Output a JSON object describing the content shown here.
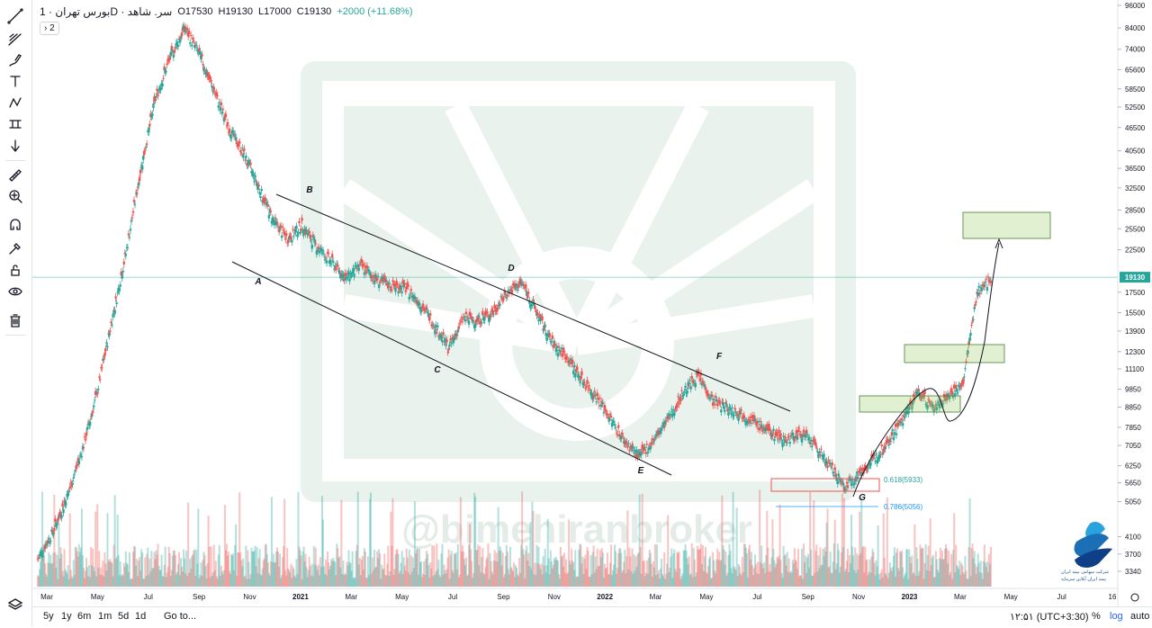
{
  "header": {
    "symbol": "بورس تهران · 1D · سر. شاهد",
    "open": "O17530",
    "high": "H19130",
    "low": "L17000",
    "close": "C19130",
    "change": "+2000 (+11.68%)",
    "badge": "› 2"
  },
  "toolbar": {
    "icons": [
      "trend-line-icon",
      "pitchfork-icon",
      "brush-icon",
      "text-icon",
      "pattern-icon",
      "measure-icon",
      "arrow-down-icon",
      "ruler-icon",
      "zoom-in-icon",
      "magnet-icon",
      "lock-drawing-icon",
      "unlock-icon",
      "eye-icon",
      "trash-icon",
      "layers-icon"
    ]
  },
  "bottom": {
    "ranges": [
      "5y",
      "1y",
      "6m",
      "1m",
      "5d",
      "1d"
    ],
    "goto": "Go to...",
    "time": "۱۲:۵۱ (UTC+3:30)",
    "percent": "%",
    "log": "log",
    "auto": "auto"
  },
  "watermark": "@bimehiranbroker",
  "logo_text": [
    "شرکت سهامی بیمه ایران",
    "بیمه ایران آنلاین سرمایه"
  ],
  "chart_data": {
    "type": "line",
    "title": "",
    "price_ticks": [
      "96000",
      "84000",
      "74000",
      "65600",
      "58500",
      "52500",
      "46500",
      "40500",
      "36500",
      "32500",
      "28500",
      "25500",
      "22500",
      "17500",
      "15500",
      "13900",
      "12300",
      "11100",
      "9850",
      "8850",
      "7850",
      "7050",
      "6250",
      "5650",
      "5050",
      "4100",
      "3700",
      "3340"
    ],
    "current_price": "19130",
    "time_ticks": [
      "Mar",
      "May",
      "Jul",
      "Sep",
      "Nov",
      "2021",
      "Mar",
      "May",
      "Jul",
      "Sep",
      "Nov",
      "2022",
      "Mar",
      "May",
      "Jul",
      "Sep",
      "Nov",
      "2023",
      "Mar",
      "May",
      "Jul",
      "16"
    ],
    "wave_labels": [
      "A",
      "B",
      "C",
      "D",
      "E",
      "F",
      "G"
    ],
    "fib_levels": [
      "0.618(5933)",
      "0.786(5056)"
    ],
    "series": [
      {
        "values": [
          3600,
          4200,
          5200,
          6800,
          9500,
          14500,
          22000,
          36000,
          55000,
          70000,
          84000,
          72000,
          58000,
          46500,
          40000,
          33000,
          27000,
          24000,
          26000,
          23000,
          21000,
          19000,
          20500,
          19000,
          18200,
          18000,
          16500,
          14500,
          12500,
          15000,
          14800,
          15500,
          17500,
          18500,
          15500,
          13000,
          12000,
          10500,
          9500,
          8300,
          7200,
          6600,
          7300,
          8300,
          9700,
          10700,
          9200,
          8800,
          8500,
          8000,
          7600,
          7300,
          7600,
          7000,
          6200,
          5500,
          6000,
          6500,
          7300,
          8300,
          9700,
          8800,
          9500,
          10000,
          17500,
          19130
        ]
      }
    ]
  }
}
